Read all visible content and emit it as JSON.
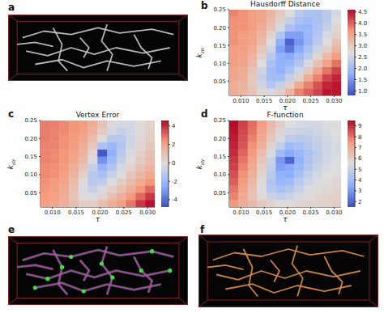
{
  "chart_data": [
    {
      "type": "image",
      "panel": "a",
      "color": "#c8c8c8"
    },
    {
      "type": "heatmap",
      "panel": "b",
      "title": "Hausdorff Distance",
      "xlabel": "τ",
      "ylabel": "k",
      "ylabel_subscript": "str",
      "x": [
        0.0085,
        0.0105,
        0.0125,
        0.0145,
        0.0165,
        0.0185,
        0.0205,
        0.0225,
        0.0245,
        0.0265,
        0.0285,
        0.0305
      ],
      "y": [
        0.02,
        0.04,
        0.06,
        0.08,
        0.1,
        0.12,
        0.14,
        0.16,
        0.18,
        0.2,
        0.22,
        0.24
      ],
      "xlim": [
        0.0075,
        0.0315
      ],
      "ylim": [
        0.01,
        0.25
      ],
      "xticks": [
        {
          "value": 0.01,
          "label": "0.010"
        },
        0.015,
        {
          "value": 0.02,
          "label": "0.020"
        },
        0.025,
        {
          "value": 0.03,
          "label": "0.030"
        }
      ],
      "yticks": [
        0.05,
        {
          "value": 0.1,
          "label": "0.10"
        },
        0.15,
        {
          "value": 0.2,
          "label": "0.20"
        },
        0.25
      ],
      "cells": [
        [
          3.4,
          3.3,
          3.1,
          2.8,
          2.6,
          2.9,
          3.3,
          3.8,
          4.0,
          4.2,
          4.5,
          4.5
        ],
        [
          3.4,
          3.3,
          3.0,
          2.5,
          2.2,
          2.4,
          2.9,
          3.4,
          3.8,
          4.1,
          4.4,
          4.5
        ],
        [
          3.5,
          3.4,
          3.0,
          2.4,
          2.0,
          2.0,
          2.4,
          2.9,
          3.4,
          3.8,
          4.2,
          4.4
        ],
        [
          3.5,
          3.4,
          3.1,
          2.5,
          2.0,
          1.8,
          2.1,
          2.5,
          3.0,
          3.5,
          3.9,
          4.2
        ],
        [
          3.6,
          3.5,
          3.2,
          2.7,
          2.1,
          1.8,
          1.9,
          2.2,
          2.6,
          3.1,
          3.5,
          3.9
        ],
        [
          3.6,
          3.5,
          3.3,
          2.9,
          2.3,
          1.8,
          1.7,
          2.0,
          2.3,
          2.8,
          3.2,
          3.6
        ],
        [
          3.6,
          3.6,
          3.4,
          3.0,
          2.5,
          1.6,
          1.2,
          1.7,
          2.1,
          2.5,
          2.9,
          3.3
        ],
        [
          3.7,
          3.6,
          3.5,
          3.2,
          2.7,
          1.8,
          1.0,
          1.5,
          1.9,
          2.3,
          2.7,
          3.1
        ],
        [
          3.7,
          3.6,
          3.5,
          3.3,
          2.9,
          2.2,
          1.6,
          1.6,
          1.9,
          2.2,
          2.6,
          2.9
        ],
        [
          3.7,
          3.7,
          3.6,
          3.4,
          3.1,
          2.6,
          2.1,
          1.9,
          1.9,
          2.1,
          2.4,
          2.8
        ],
        [
          3.7,
          3.7,
          3.6,
          3.5,
          3.2,
          2.9,
          2.4,
          2.1,
          2.0,
          2.1,
          2.3,
          2.7
        ],
        [
          3.8,
          3.7,
          3.6,
          3.5,
          3.3,
          3.0,
          2.7,
          2.3,
          2.1,
          2.1,
          2.3,
          2.6
        ]
      ],
      "colorbar": {
        "range": [
          0.8,
          4.6
        ],
        "ticks": [
          {
            "value": 1,
            "label": "1.0"
          },
          1.5,
          {
            "value": 2,
            "label": "2.0"
          },
          2.5,
          {
            "value": 3,
            "label": "3.0"
          },
          3.5,
          {
            "value": 4,
            "label": "4.0"
          },
          4.5
        ]
      }
    },
    {
      "type": "heatmap",
      "panel": "c",
      "title": "Vertex Error",
      "xlabel": "τ",
      "ylabel": "k",
      "ylabel_subscript": "str",
      "x": [
        0.0085,
        0.0105,
        0.0125,
        0.0145,
        0.0165,
        0.0185,
        0.0205,
        0.0225,
        0.0245,
        0.0265,
        0.0285,
        0.0305
      ],
      "y": [
        0.02,
        0.04,
        0.06,
        0.08,
        0.1,
        0.12,
        0.14,
        0.16,
        0.18,
        0.2,
        0.22,
        0.24
      ],
      "xlim": [
        0.0075,
        0.0315
      ],
      "ylim": [
        0.01,
        0.25
      ],
      "xticks": [
        {
          "value": 0.01,
          "label": "0.010"
        },
        0.015,
        {
          "value": 0.02,
          "label": "0.020"
        },
        0.025,
        {
          "value": 0.03,
          "label": "0.030"
        }
      ],
      "yticks": [
        0.05,
        {
          "value": 0.1,
          "label": "0.10"
        },
        0.15,
        {
          "value": 0.2,
          "label": "0.20"
        },
        0.25
      ],
      "cells": [
        [
          2.0,
          1.8,
          1.5,
          1.0,
          0.5,
          0.5,
          1.0,
          1.5,
          2.0,
          2.8,
          3.8,
          4.4
        ],
        [
          2.2,
          2.0,
          1.6,
          0.8,
          0.0,
          -0.2,
          0.3,
          0.9,
          1.5,
          2.2,
          3.0,
          3.8
        ],
        [
          2.3,
          2.1,
          1.7,
          0.9,
          -0.3,
          -0.8,
          -0.3,
          0.4,
          1.0,
          1.6,
          2.3,
          3.0
        ],
        [
          2.4,
          2.2,
          1.9,
          1.1,
          0.0,
          -1.2,
          -1.0,
          -0.2,
          0.5,
          1.1,
          1.7,
          2.3
        ],
        [
          2.5,
          2.4,
          2.0,
          1.4,
          0.4,
          -1.2,
          -1.6,
          -0.8,
          0.0,
          0.7,
          1.3,
          1.8
        ],
        [
          2.5,
          2.4,
          2.2,
          1.6,
          0.8,
          -0.8,
          -2.2,
          -1.4,
          -0.4,
          0.3,
          0.9,
          1.4
        ],
        [
          2.6,
          2.5,
          2.3,
          1.8,
          1.1,
          -0.3,
          -3.2,
          -2.0,
          -0.8,
          0.0,
          0.6,
          1.1
        ],
        [
          2.6,
          2.5,
          2.3,
          2.0,
          1.4,
          0.2,
          -4.5,
          -2.4,
          -1.2,
          -0.3,
          0.4,
          0.9
        ],
        [
          2.6,
          2.6,
          2.4,
          2.1,
          1.6,
          0.7,
          -1.5,
          -2.0,
          -1.3,
          -0.5,
          0.2,
          0.7
        ],
        [
          2.7,
          2.6,
          2.4,
          2.2,
          1.8,
          1.1,
          0.0,
          -1.2,
          -1.2,
          -0.6,
          0.1,
          0.5
        ],
        [
          2.7,
          2.6,
          2.5,
          2.3,
          2.0,
          1.4,
          0.6,
          -0.4,
          -0.8,
          -0.5,
          0.0,
          0.4
        ],
        [
          2.7,
          2.7,
          2.5,
          2.3,
          2.1,
          1.6,
          0.9,
          0.1,
          -0.4,
          -0.4,
          0.0,
          0.3
        ]
      ],
      "colorbar": {
        "range": [
          -4.8,
          4.6
        ],
        "ticks": [
          -4,
          -2,
          0,
          2,
          4
        ]
      }
    },
    {
      "type": "heatmap",
      "panel": "d",
      "title": "F-function",
      "xlabel": "τ",
      "ylabel": "k",
      "ylabel_subscript": "str",
      "x": [
        0.0085,
        0.0105,
        0.0125,
        0.0145,
        0.0165,
        0.0185,
        0.0205,
        0.0225,
        0.0245,
        0.0265,
        0.0285,
        0.0305
      ],
      "y": [
        0.02,
        0.04,
        0.06,
        0.08,
        0.1,
        0.12,
        0.14,
        0.16,
        0.18,
        0.2,
        0.22,
        0.24
      ],
      "xlim": [
        0.0075,
        0.0315
      ],
      "ylim": [
        0.01,
        0.25
      ],
      "xticks": [
        {
          "value": 0.01,
          "label": "0.010"
        },
        0.015,
        {
          "value": 0.02,
          "label": "0.020"
        },
        0.025,
        {
          "value": 0.03,
          "label": "0.030"
        }
      ],
      "yticks": [
        0.05,
        {
          "value": 0.1,
          "label": "0.10"
        },
        0.15,
        {
          "value": 0.2,
          "label": "0.20"
        },
        0.25
      ],
      "cells": [
        [
          7.5,
          7.0,
          6.6,
          6.2,
          5.8,
          5.6,
          5.6,
          5.7,
          5.8,
          5.8,
          5.9,
          6.0
        ],
        [
          7.8,
          7.0,
          6.3,
          5.6,
          5.0,
          4.8,
          5.0,
          5.3,
          5.6,
          5.7,
          5.8,
          5.9
        ],
        [
          8.0,
          7.2,
          6.4,
          5.4,
          4.5,
          4.2,
          4.5,
          5.0,
          5.4,
          5.6,
          5.7,
          5.8
        ],
        [
          8.3,
          7.4,
          6.6,
          5.6,
          4.4,
          3.8,
          4.0,
          4.6,
          5.1,
          5.4,
          5.6,
          5.7
        ],
        [
          8.5,
          7.6,
          6.8,
          5.8,
          4.6,
          3.6,
          3.5,
          4.2,
          4.8,
          5.2,
          5.5,
          5.6
        ],
        [
          8.7,
          7.8,
          7.0,
          6.0,
          4.8,
          3.2,
          3.4,
          3.9,
          4.5,
          5.0,
          5.3,
          5.5
        ],
        [
          8.8,
          8.0,
          7.2,
          6.2,
          5.0,
          3.0,
          2.0,
          3.6,
          4.3,
          4.8,
          5.2,
          5.4
        ],
        [
          9.0,
          8.2,
          7.4,
          6.5,
          5.3,
          4.0,
          3.4,
          3.8,
          4.3,
          4.7,
          5.1,
          5.3
        ],
        [
          9.1,
          8.4,
          7.6,
          6.8,
          5.8,
          4.8,
          4.0,
          4.2,
          4.5,
          4.8,
          5.1,
          5.3
        ],
        [
          9.2,
          8.5,
          7.8,
          7.0,
          6.2,
          5.3,
          4.7,
          4.6,
          4.7,
          4.9,
          5.2,
          5.4
        ],
        [
          9.3,
          8.6,
          8.0,
          7.2,
          6.4,
          5.7,
          5.1,
          5.0,
          5.0,
          5.1,
          5.3,
          5.5
        ],
        [
          9.4,
          8.7,
          8.1,
          7.4,
          6.6,
          6.0,
          5.5,
          5.3,
          5.2,
          5.2,
          5.4,
          5.6
        ]
      ],
      "colorbar": {
        "range": [
          1.5,
          9.5
        ],
        "ticks": [
          2,
          3,
          4,
          5,
          6,
          7,
          8,
          9
        ]
      }
    },
    {
      "type": "image",
      "panel": "e",
      "color": "#c040c0",
      "marker": "circle"
    },
    {
      "type": "image",
      "panel": "f",
      "color": "#e09040"
    }
  ]
}
